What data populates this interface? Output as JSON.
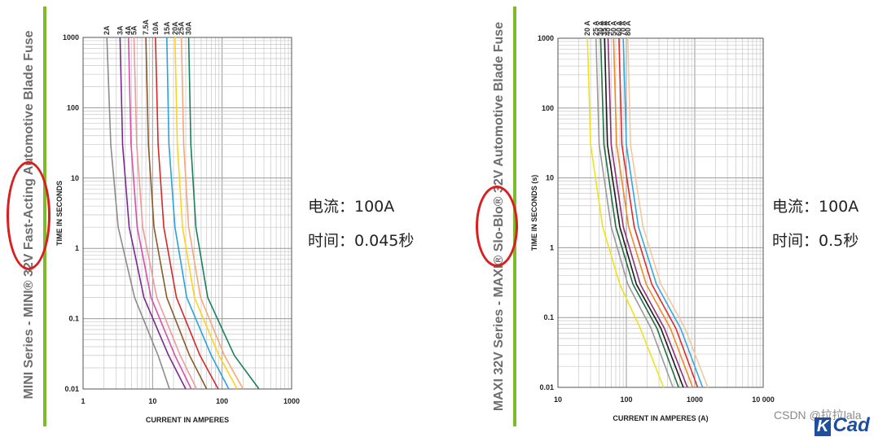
{
  "left_panel": {
    "vertical_title": "MINI Series - MINI® 32V Fast-Acting Automotive Blade Fuse",
    "annotation": {
      "current": "电流：100A",
      "time": "时间：0.045秒"
    }
  },
  "right_panel": {
    "vertical_title": "MAXI 32V Series - MAXI® Slo-Blo® 32V Automotive Blade Fuse",
    "annotation": {
      "current": "电流：100A",
      "time": "时间：0.5秒"
    }
  },
  "watermark": "CSDN @拉拉lala",
  "logo_text": "Cad",
  "colors": {
    "accent_bar": "#7dbb2d",
    "highlight_oval": "#d91f1f"
  },
  "chart_data": [
    {
      "type": "line",
      "xlabel": "CURRENT IN AMPERES",
      "ylabel": "TIME IN SECONDS",
      "x_scale": "log",
      "y_scale": "log",
      "xlim": [
        1,
        1000
      ],
      "ylim": [
        0.01,
        1000
      ],
      "x_ticks": [
        "1",
        "10",
        "100",
        "1000"
      ],
      "y_ticks": [
        "1000",
        "100",
        "10",
        "1",
        "0.1",
        "0.01"
      ],
      "grid": true,
      "series": [
        {
          "name": "2A",
          "color": "#8c8c8c",
          "x": [
            2.2,
            2.5,
            3.2,
            5.5,
            12,
            17.5
          ],
          "y": [
            1000,
            30,
            2,
            0.2,
            0.03,
            0.01
          ]
        },
        {
          "name": "3A",
          "color": "#7a2a8f",
          "x": [
            3.4,
            3.7,
            4.6,
            7.5,
            17,
            30
          ],
          "y": [
            1000,
            30,
            2,
            0.2,
            0.03,
            0.01
          ]
        },
        {
          "name": "4A",
          "color": "#d94fa8",
          "x": [
            4.5,
            4.9,
            6,
            9.5,
            21,
            36
          ],
          "y": [
            1000,
            30,
            2,
            0.2,
            0.03,
            0.01
          ]
        },
        {
          "name": "5A",
          "color": "#ef9a9a",
          "x": [
            5.4,
            5.9,
            7.2,
            11.5,
            25,
            43
          ],
          "y": [
            1000,
            30,
            2,
            0.2,
            0.03,
            0.01
          ]
        },
        {
          "name": "7.5A",
          "color": "#8a5a2b",
          "x": [
            8,
            8.7,
            10.5,
            16,
            34,
            60
          ],
          "y": [
            1000,
            30,
            2,
            0.2,
            0.03,
            0.01
          ]
        },
        {
          "name": "10A",
          "color": "#d62828",
          "x": [
            11,
            12,
            14.5,
            22,
            48,
            88
          ],
          "y": [
            1000,
            30,
            2,
            0.2,
            0.03,
            0.01
          ]
        },
        {
          "name": "15A",
          "color": "#29a3d9",
          "x": [
            16,
            17.2,
            21,
            31,
            70,
            125
          ],
          "y": [
            1000,
            30,
            2,
            0.2,
            0.03,
            0.01
          ]
        },
        {
          "name": "20A",
          "color": "#ffd21f",
          "x": [
            21,
            22.7,
            27,
            40,
            90,
            165
          ],
          "y": [
            1000,
            30,
            2,
            0.2,
            0.03,
            0.01
          ]
        },
        {
          "name": "25A",
          "color": "#f5a878",
          "x": [
            26,
            28,
            33,
            49,
            108,
            200
          ],
          "y": [
            1000,
            30,
            2,
            0.2,
            0.03,
            0.01
          ]
        },
        {
          "name": "30A",
          "color": "#17805a",
          "x": [
            33,
            35.5,
            42,
            62,
            150,
            340
          ],
          "y": [
            1000,
            30,
            2,
            0.2,
            0.03,
            0.01
          ]
        }
      ]
    },
    {
      "type": "line",
      "xlabel": "CURRENT IN AMPERES (A)",
      "ylabel": "TIME IN SECONDS (s)",
      "x_scale": "log",
      "y_scale": "log",
      "xlim": [
        10,
        10000
      ],
      "ylim": [
        0.01,
        1000
      ],
      "x_ticks": [
        "10",
        "100",
        "1000",
        "10 000"
      ],
      "y_ticks": [
        "1000",
        "100",
        "10",
        "1",
        "0.1",
        "0.01"
      ],
      "grid": true,
      "series": [
        {
          "name": "20 A",
          "color": "#f0e21a",
          "x": [
            27,
            30,
            45,
            80,
            160,
            350
          ],
          "y": [
            1000,
            30,
            2,
            0.3,
            0.07,
            0.01
          ]
        },
        {
          "name": "25 A",
          "color": "#9a9a9a",
          "x": [
            36,
            40,
            60,
            105,
            230,
            480
          ],
          "y": [
            1000,
            30,
            2,
            0.3,
            0.07,
            0.01
          ]
        },
        {
          "name": "30 A",
          "color": "#1f6f3f",
          "x": [
            42,
            47,
            70,
            125,
            280,
            580
          ],
          "y": [
            1000,
            30,
            2,
            0.3,
            0.07,
            0.01
          ]
        },
        {
          "name": "35 A",
          "color": "#1a1a1a",
          "x": [
            48,
            53,
            80,
            140,
            320,
            680
          ],
          "y": [
            1000,
            30,
            2,
            0.3,
            0.07,
            0.01
          ]
        },
        {
          "name": "40 A",
          "color": "#8c2f7a",
          "x": [
            54,
            60,
            90,
            160,
            360,
            780
          ],
          "y": [
            1000,
            30,
            2,
            0.3,
            0.07,
            0.01
          ]
        },
        {
          "name": "50 A",
          "color": "#f08a24",
          "x": [
            65,
            72,
            108,
            195,
            440,
            930
          ],
          "y": [
            1000,
            30,
            2,
            0.3,
            0.07,
            0.01
          ]
        },
        {
          "name": "60 A",
          "color": "#e02a2a",
          "x": [
            78,
            86,
            130,
            235,
            530,
            1100
          ],
          "y": [
            1000,
            30,
            2,
            0.3,
            0.07,
            0.01
          ]
        },
        {
          "name": "70 A",
          "color": "#35a7e0",
          "x": [
            90,
            100,
            150,
            275,
            620,
            1300
          ],
          "y": [
            1000,
            30,
            2,
            0.3,
            0.07,
            0.01
          ]
        },
        {
          "name": "80 A",
          "color": "#f3c79e",
          "x": [
            105,
            115,
            175,
            320,
            720,
            1550
          ],
          "y": [
            1000,
            30,
            2,
            0.3,
            0.07,
            0.01
          ]
        }
      ]
    }
  ]
}
